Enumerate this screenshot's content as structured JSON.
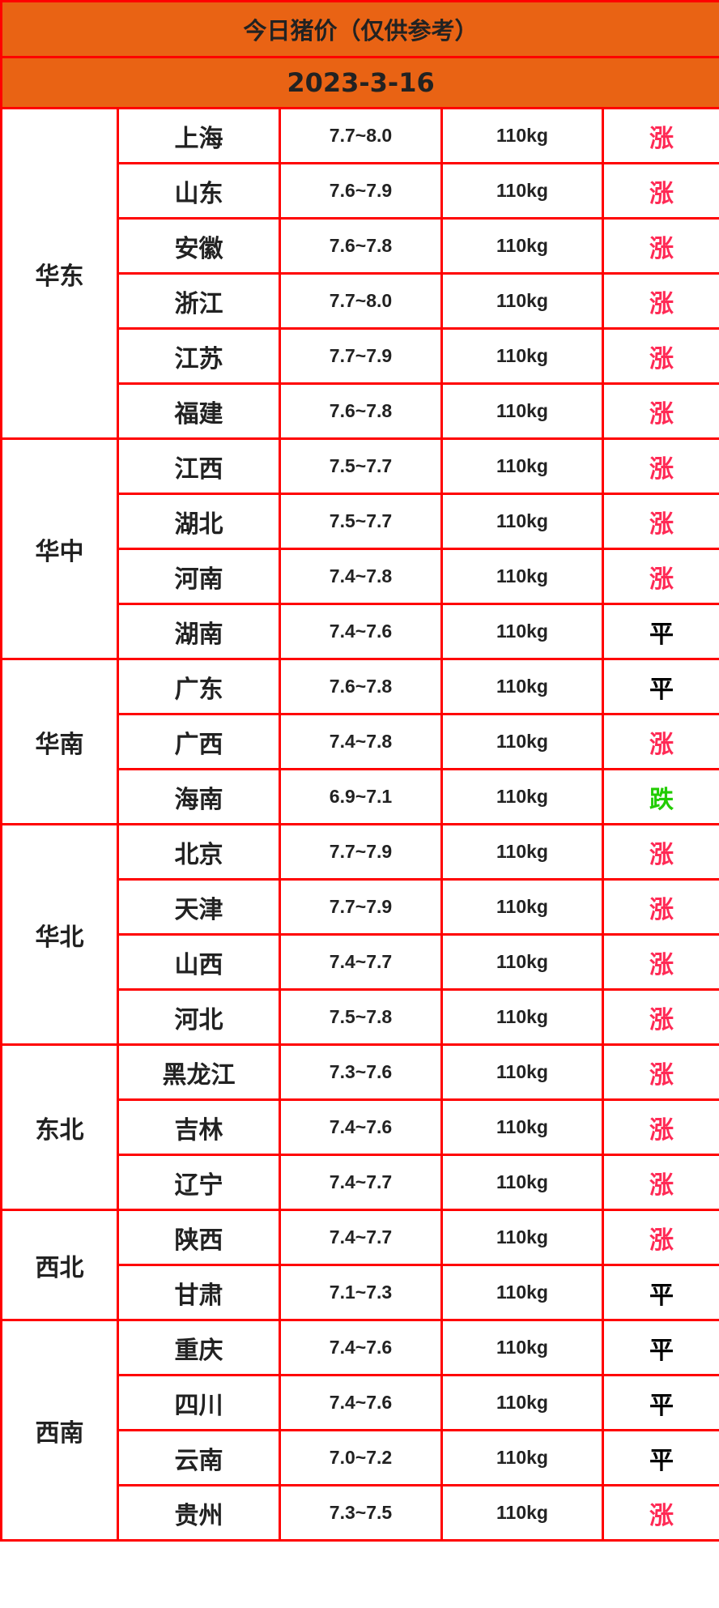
{
  "title": "今日猪价（仅供参考）",
  "date": "2023-3-16",
  "colors": {
    "header_bg": "#e96314",
    "border": "#ff0000",
    "up": "#ff2a55",
    "down": "#22cc00",
    "flat": "#000000"
  },
  "regions": [
    {
      "name": "华东",
      "rows": [
        {
          "province": "上海",
          "price": "7.7~8.0",
          "weight": "110kg",
          "trend": "涨"
        },
        {
          "province": "山东",
          "price": "7.6~7.9",
          "weight": "110kg",
          "trend": "涨"
        },
        {
          "province": "安徽",
          "price": "7.6~7.8",
          "weight": "110kg",
          "trend": "涨"
        },
        {
          "province": "浙江",
          "price": "7.7~8.0",
          "weight": "110kg",
          "trend": "涨"
        },
        {
          "province": "江苏",
          "price": "7.7~7.9",
          "weight": "110kg",
          "trend": "涨"
        },
        {
          "province": "福建",
          "price": "7.6~7.8",
          "weight": "110kg",
          "trend": "涨"
        }
      ]
    },
    {
      "name": "华中",
      "rows": [
        {
          "province": "江西",
          "price": "7.5~7.7",
          "weight": "110kg",
          "trend": "涨"
        },
        {
          "province": "湖北",
          "price": "7.5~7.7",
          "weight": "110kg",
          "trend": "涨"
        },
        {
          "province": "河南",
          "price": "7.4~7.8",
          "weight": "110kg",
          "trend": "涨"
        },
        {
          "province": "湖南",
          "price": "7.4~7.6",
          "weight": "110kg",
          "trend": "平"
        }
      ]
    },
    {
      "name": "华南",
      "rows": [
        {
          "province": "广东",
          "price": "7.6~7.8",
          "weight": "110kg",
          "trend": "平"
        },
        {
          "province": "广西",
          "price": "7.4~7.8",
          "weight": "110kg",
          "trend": "涨"
        },
        {
          "province": "海南",
          "price": "6.9~7.1",
          "weight": "110kg",
          "trend": "跌"
        }
      ]
    },
    {
      "name": "华北",
      "rows": [
        {
          "province": "北京",
          "price": "7.7~7.9",
          "weight": "110kg",
          "trend": "涨"
        },
        {
          "province": "天津",
          "price": "7.7~7.9",
          "weight": "110kg",
          "trend": "涨"
        },
        {
          "province": "山西",
          "price": "7.4~7.7",
          "weight": "110kg",
          "trend": "涨"
        },
        {
          "province": "河北",
          "price": "7.5~7.8",
          "weight": "110kg",
          "trend": "涨"
        }
      ]
    },
    {
      "name": "东北",
      "rows": [
        {
          "province": "黑龙江",
          "price": "7.3~7.6",
          "weight": "110kg",
          "trend": "涨"
        },
        {
          "province": "吉林",
          "price": "7.4~7.6",
          "weight": "110kg",
          "trend": "涨"
        },
        {
          "province": "辽宁",
          "price": "7.4~7.7",
          "weight": "110kg",
          "trend": "涨"
        }
      ]
    },
    {
      "name": "西北",
      "rows": [
        {
          "province": "陕西",
          "price": "7.4~7.7",
          "weight": "110kg",
          "trend": "涨"
        },
        {
          "province": "甘肃",
          "price": "7.1~7.3",
          "weight": "110kg",
          "trend": "平"
        }
      ]
    },
    {
      "name": "西南",
      "rows": [
        {
          "province": "重庆",
          "price": "7.4~7.6",
          "weight": "110kg",
          "trend": "平"
        },
        {
          "province": "四川",
          "price": "7.4~7.6",
          "weight": "110kg",
          "trend": "平"
        },
        {
          "province": "云南",
          "price": "7.0~7.2",
          "weight": "110kg",
          "trend": "平"
        },
        {
          "province": "贵州",
          "price": "7.3~7.5",
          "weight": "110kg",
          "trend": "涨"
        }
      ]
    }
  ]
}
